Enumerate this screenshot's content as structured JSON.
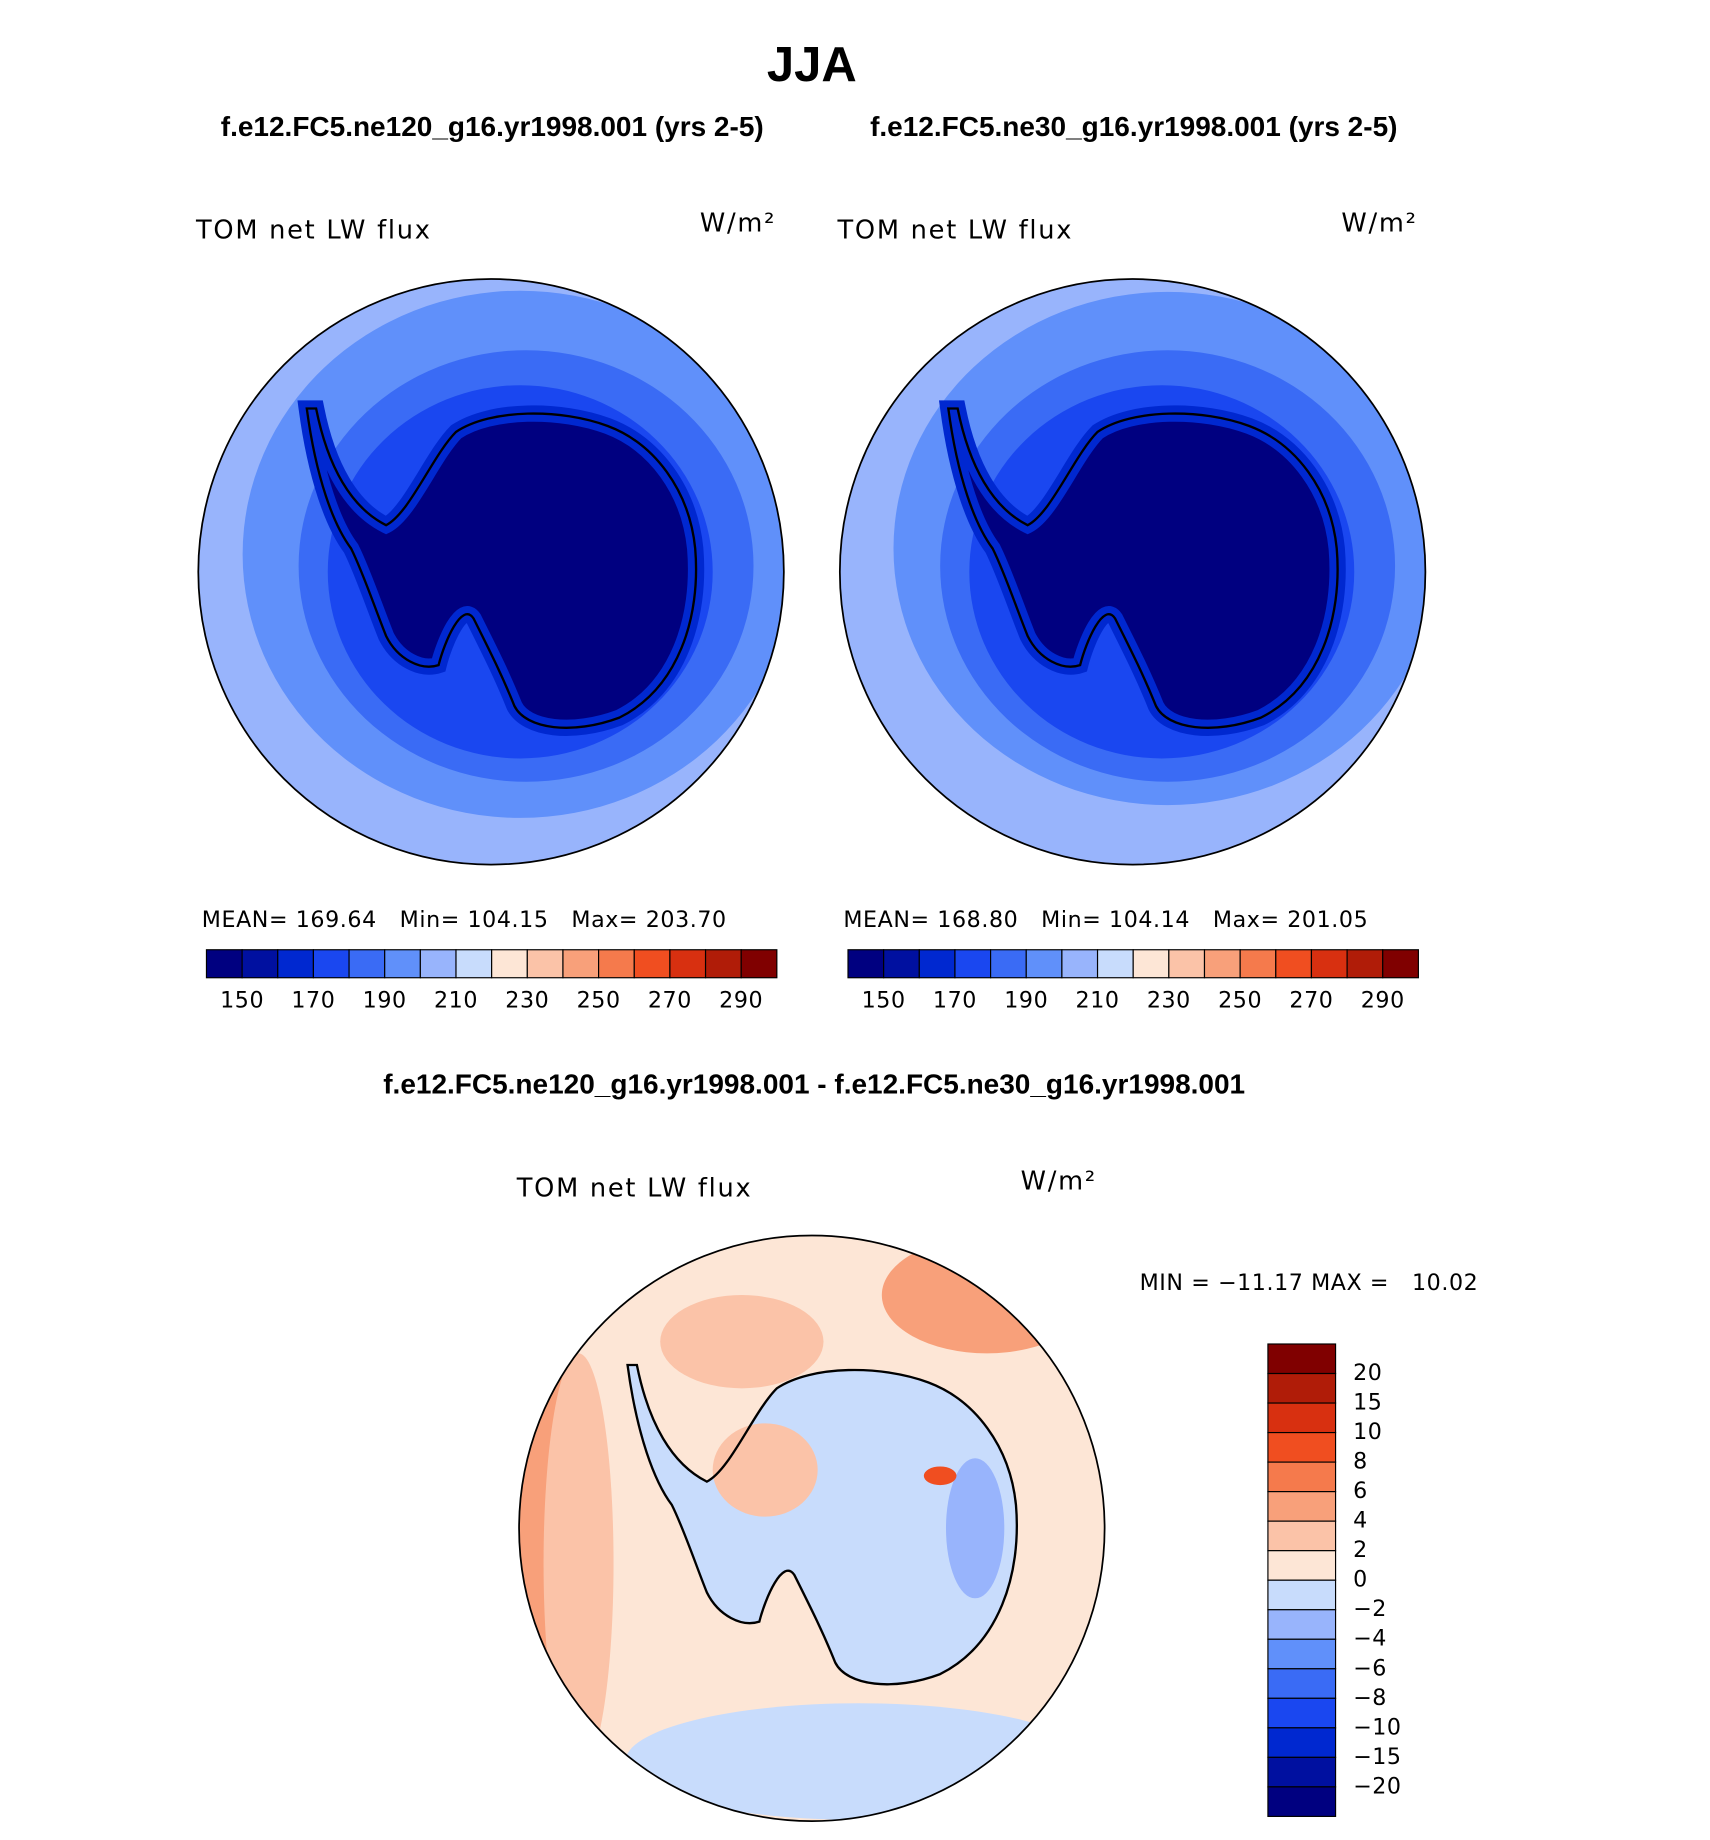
{
  "title": "JJA",
  "colors": [
    "#000080",
    "#0010a0",
    "#0028d0",
    "#1a47f0",
    "#3a6bf5",
    "#6090fa",
    "#98b4fc",
    "#c8dcfc",
    "#fde6d6",
    "#fbc3a8",
    "#f8a07a",
    "#f57a4c",
    "#f04e20",
    "#d83010",
    "#b01c08",
    "#800000"
  ],
  "panels": [
    {
      "case": "f.e12.FC5.ne120_g16.yr1998.001 (yrs 2-5)",
      "label": "TOM net LW flux",
      "units": "W/m²",
      "stats": "MEAN= 169.64   Min= 104.15   Max= 203.70",
      "colorbar_labels": [
        "150",
        "170",
        "190",
        "210",
        "230",
        "250",
        "270",
        "290"
      ]
    },
    {
      "case": "f.e12.FC5.ne30_g16.yr1998.001 (yrs 2-5)",
      "label": "TOM net LW flux",
      "units": "W/m²",
      "stats": "MEAN= 168.80   Min= 104.14   Max= 201.05",
      "colorbar_labels": [
        "150",
        "170",
        "190",
        "210",
        "230",
        "250",
        "270",
        "290"
      ]
    }
  ],
  "difference": {
    "title": "f.e12.FC5.ne120_g16.yr1998.001 - f.e12.FC5.ne30_g16.yr1998.001",
    "label": "TOM net LW flux",
    "units": "W/m²",
    "stats": "MIN = −11.17 MAX =   10.02",
    "colorbar_labels": [
      "20",
      "15",
      "10",
      "8",
      "6",
      "4",
      "2",
      "0",
      "−2",
      "−4",
      "−6",
      "−8",
      "−10",
      "−15",
      "−20"
    ]
  }
}
